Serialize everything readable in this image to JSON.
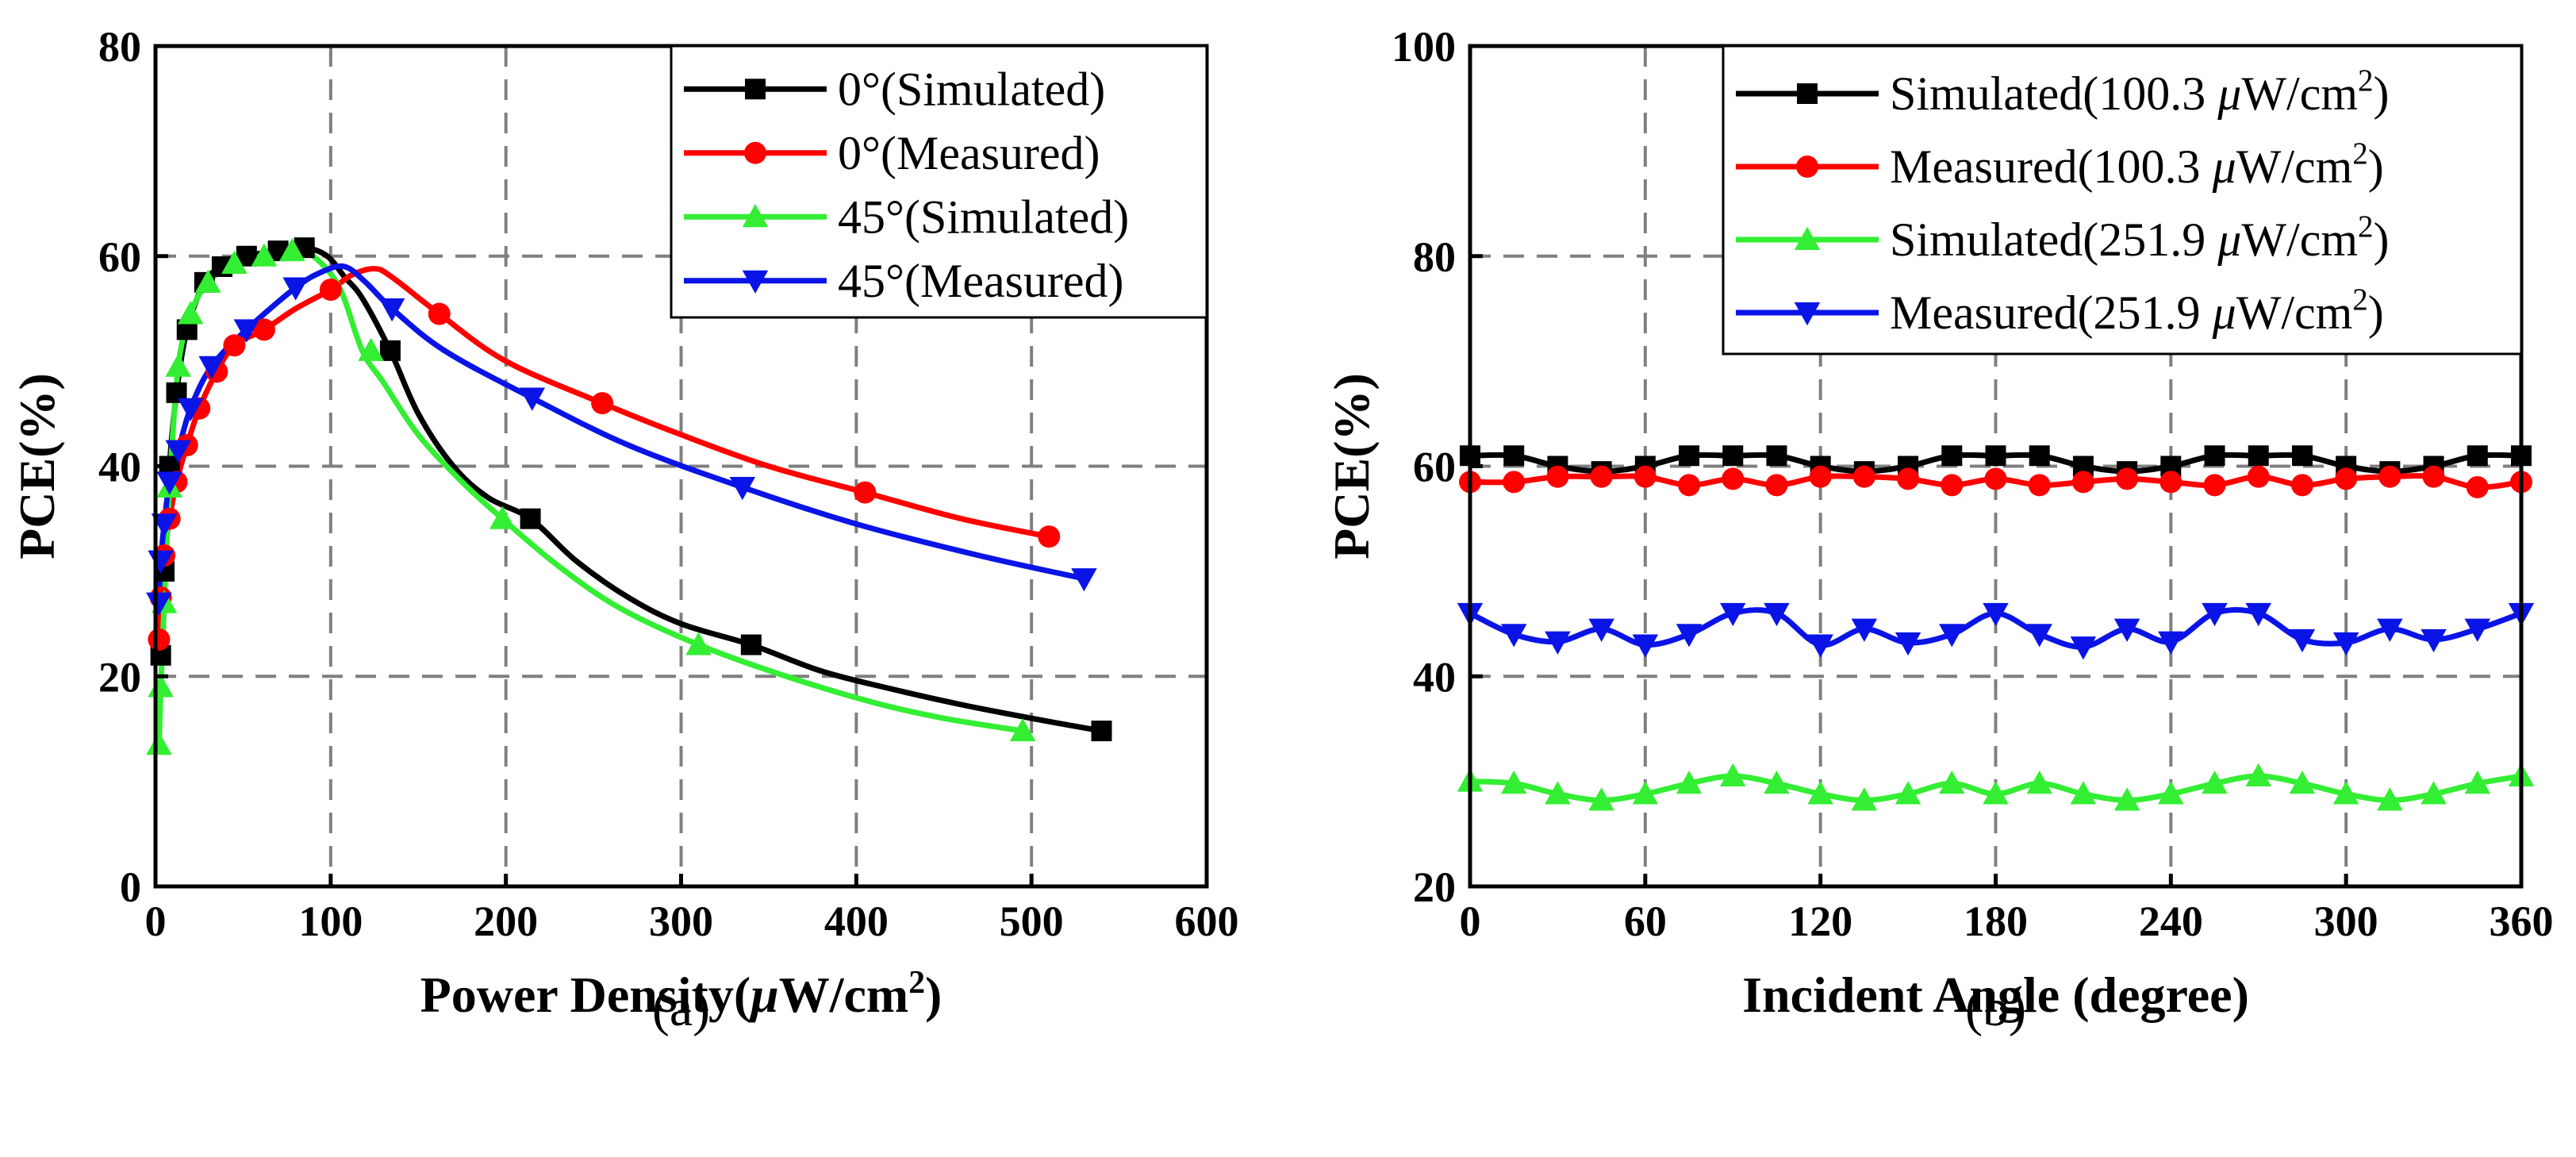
{
  "colors": {
    "black": "#000000",
    "red": "#ff0000",
    "green": "#33ee33",
    "blue": "#0a14e6",
    "grid": "#7f7f7f"
  },
  "chart_data": [
    {
      "type": "line",
      "panel_label": "(a)",
      "xlabel": {
        "pre": "Power Density(",
        "mu": "μ",
        "unit": "W/cm",
        "sup": "2",
        "post": ")"
      },
      "ylabel": "PCE(%)",
      "xlim": [
        0,
        600
      ],
      "ylim": [
        0,
        80
      ],
      "xticks": [
        "0",
        "100",
        "200",
        "300",
        "400",
        "500",
        "600"
      ],
      "yticks": [
        "0",
        "20",
        "40",
        "60",
        "80"
      ],
      "legend_position": "top-right",
      "series": [
        {
          "name": "0°(Simulated)",
          "color": "black",
          "marker": "square",
          "x": [
            3,
            5,
            8,
            12,
            18,
            28,
            38,
            52,
            70,
            85,
            98,
            108,
            118,
            134,
            150,
            170,
            190,
            214,
            240,
            270,
            300,
            340,
            380,
            420,
            460,
            500,
            540
          ],
          "y": [
            22,
            30,
            40,
            47,
            53,
            57.5,
            59,
            60,
            60.5,
            60.8,
            60,
            58,
            56,
            51,
            45,
            40,
            37,
            35,
            31,
            27.5,
            25,
            23,
            20.5,
            18.8,
            17.3,
            16,
            14.8
          ],
          "marker_x": [
            3,
            5,
            8,
            12,
            18,
            28,
            38,
            52,
            70,
            85,
            134,
            214,
            340,
            540
          ],
          "marker_y": [
            22,
            30,
            40,
            47,
            53,
            57.5,
            59,
            60,
            60.5,
            60.8,
            51,
            35,
            23,
            14.8
          ]
        },
        {
          "name": "0°(Measured)",
          "color": "red",
          "marker": "circle",
          "x": [
            2,
            3,
            5,
            8,
            12,
            18,
            25,
            35,
            45,
            62,
            80,
            100,
            112,
            125,
            135,
            162,
            200,
            255,
            300,
            350,
            405,
            460,
            510
          ],
          "y": [
            23.5,
            27.5,
            31.5,
            35,
            38.5,
            42,
            45.5,
            49,
            51.5,
            53,
            55,
            56.8,
            58.2,
            58.8,
            58,
            54.5,
            50,
            46,
            43,
            40,
            37.5,
            35,
            33.3
          ],
          "marker_x": [
            2,
            3,
            5,
            8,
            12,
            18,
            25,
            35,
            45,
            62,
            100,
            162,
            255,
            405,
            510
          ],
          "marker_y": [
            23.5,
            27.5,
            31.5,
            35,
            38.5,
            42,
            45.5,
            49,
            51.5,
            53,
            56.8,
            54.5,
            46,
            37.5,
            33.3
          ]
        },
        {
          "name": "45°(Simulated)",
          "color": "green",
          "marker": "triangle-up",
          "x": [
            2,
            3,
            5,
            8,
            13,
            20,
            30,
            45,
            62,
            78,
            90,
            105,
            118,
            130,
            150,
            175,
            198,
            230,
            265,
            310,
            360,
            410,
            450,
            495
          ],
          "y": [
            13.5,
            19,
            27,
            38,
            49.5,
            54.5,
            57.5,
            59.3,
            60,
            60.5,
            60,
            57,
            51,
            48,
            43,
            38.5,
            35,
            30.5,
            26.5,
            23,
            20,
            17.5,
            16,
            14.8
          ],
          "marker_x": [
            2,
            3,
            5,
            8,
            13,
            20,
            30,
            45,
            62,
            78,
            123,
            198,
            310,
            495
          ],
          "marker_y": [
            13.5,
            19,
            27,
            38,
            49.5,
            54.5,
            57.5,
            59.3,
            60,
            60.5,
            51,
            35,
            23,
            14.8
          ]
        },
        {
          "name": "45°(Measured)",
          "color": "blue",
          "marker": "triangle-down",
          "x": [
            2,
            3,
            5,
            8,
            13,
            20,
            32,
            52,
            80,
            95,
            108,
            120,
            135,
            165,
            215,
            270,
            335,
            400,
            470,
            530
          ],
          "y": [
            27,
            31,
            34.5,
            38.5,
            41.5,
            45.5,
            49.5,
            53,
            57,
            58.5,
            59,
            57.5,
            55,
            51,
            46.5,
            42,
            38,
            34.5,
            31.5,
            29.3
          ],
          "marker_x": [
            2,
            3,
            5,
            8,
            13,
            20,
            32,
            52,
            80,
            135,
            215,
            335,
            530
          ],
          "marker_y": [
            27,
            31,
            34.5,
            38.5,
            41.5,
            45.5,
            49.5,
            53,
            57,
            55,
            46.5,
            38,
            29.3
          ]
        }
      ]
    },
    {
      "type": "line",
      "panel_label": "(b)",
      "xlabel": {
        "pre": "Incident Angle (degree)",
        "mu": "",
        "unit": "",
        "sup": "",
        "post": ""
      },
      "ylabel": "PCE(%)",
      "xlim": [
        0,
        360
      ],
      "ylim": [
        20,
        100
      ],
      "xticks": [
        "0",
        "60",
        "120",
        "180",
        "240",
        "300",
        "360"
      ],
      "yticks": [
        "20",
        "40",
        "60",
        "80",
        "100"
      ],
      "legend_position": "top-right",
      "series": [
        {
          "name": "Simulated(100.3 μW/cm²)",
          "legend": {
            "pre": "Simulated(100.3 ",
            "mu": "μ",
            "unit": "W/cm",
            "sup": "2",
            "post": ")"
          },
          "color": "black",
          "marker": "square",
          "x": [
            0,
            15,
            30,
            45,
            60,
            75,
            90,
            105,
            120,
            135,
            150,
            165,
            180,
            195,
            210,
            225,
            240,
            255,
            270,
            285,
            300,
            315,
            330,
            345,
            360
          ],
          "y": [
            61,
            61,
            60,
            59.5,
            60,
            61,
            61,
            61,
            60,
            59.5,
            60,
            61,
            61,
            61,
            60,
            59.5,
            60,
            61,
            61,
            61,
            60,
            59.5,
            60,
            61,
            61
          ]
        },
        {
          "name": "Measured(100.3 μW/cm²)",
          "legend": {
            "pre": "Measured(100.3 ",
            "mu": "μ",
            "unit": "W/cm",
            "sup": "2",
            "post": ")"
          },
          "color": "red",
          "marker": "circle",
          "x": [
            0,
            15,
            30,
            45,
            60,
            75,
            90,
            105,
            120,
            135,
            150,
            165,
            180,
            195,
            210,
            225,
            240,
            255,
            270,
            285,
            300,
            315,
            330,
            345,
            360
          ],
          "y": [
            58.5,
            58.5,
            59,
            59,
            59,
            58.2,
            58.8,
            58.2,
            59,
            59,
            58.8,
            58.2,
            58.8,
            58.2,
            58.5,
            58.8,
            58.5,
            58.2,
            59,
            58.2,
            58.8,
            59,
            59,
            58,
            58.5
          ]
        },
        {
          "name": "Simulated(251.9 μW/cm²)",
          "legend": {
            "pre": "Simulated(251.9 ",
            "mu": "μ",
            "unit": "W/cm",
            "sup": "2",
            "post": ")"
          },
          "color": "green",
          "marker": "triangle-up",
          "x": [
            0,
            15,
            30,
            45,
            60,
            75,
            90,
            105,
            120,
            135,
            150,
            165,
            180,
            195,
            210,
            225,
            240,
            255,
            270,
            285,
            300,
            315,
            330,
            345,
            360
          ],
          "y": [
            30,
            29.8,
            28.8,
            28.2,
            28.8,
            29.8,
            30.5,
            29.8,
            28.8,
            28.2,
            28.8,
            29.8,
            28.8,
            29.8,
            28.8,
            28.2,
            28.8,
            29.8,
            30.5,
            29.8,
            28.8,
            28.2,
            28.8,
            29.8,
            30.5
          ]
        },
        {
          "name": "Measured(251.9 μW/cm²)",
          "legend": {
            "pre": "Measured(251.9 ",
            "mu": "μ",
            "unit": "W/cm",
            "sup": "2",
            "post": ")"
          },
          "color": "blue",
          "marker": "triangle-down",
          "x": [
            0,
            15,
            30,
            45,
            60,
            75,
            90,
            105,
            120,
            135,
            150,
            165,
            180,
            195,
            210,
            225,
            240,
            255,
            270,
            285,
            300,
            315,
            330,
            345,
            360
          ],
          "y": [
            46,
            44,
            43.3,
            44.5,
            43,
            44,
            46,
            46,
            43,
            44.5,
            43.2,
            44,
            46,
            44,
            42.8,
            44.5,
            43.3,
            46,
            46,
            43.5,
            43.2,
            44.5,
            43.5,
            44.5,
            46
          ]
        }
      ]
    }
  ]
}
